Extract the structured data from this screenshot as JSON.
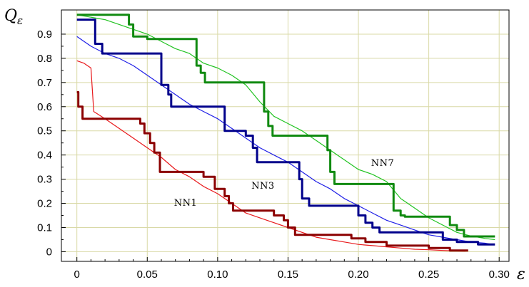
{
  "chart_data": {
    "type": "line",
    "xlabel": "ε",
    "ylabel": "Qε",
    "xlim": [
      -0.011,
      0.307
    ],
    "ylim": [
      -0.04,
      1.0
    ],
    "xticks": [
      0,
      0.05,
      0.1,
      0.15,
      0.2,
      0.25,
      0.3
    ],
    "xtick_labels": [
      "0",
      "0.05",
      "0.10",
      "0.15",
      "0.20",
      "0.25",
      "0.30"
    ],
    "yticks": [
      0,
      0.1,
      0.2,
      0.3,
      0.4,
      0.5,
      0.6,
      0.7,
      0.8,
      0.9
    ],
    "ytick_labels": [
      "0",
      "0.1",
      "0.2",
      "0.3",
      "0.4",
      "0.5",
      "0.6",
      "0.7",
      "0.8",
      "0.9"
    ],
    "grid": true,
    "annotations": [
      {
        "text": "NN1",
        "x": 0.069,
        "y": 0.19
      },
      {
        "text": "NN3",
        "x": 0.124,
        "y": 0.26
      },
      {
        "text": "NN7",
        "x": 0.209,
        "y": 0.355
      }
    ],
    "series": [
      {
        "color": "#e8191c",
        "style": "thin",
        "points": [
          [
            0,
            0.79
          ],
          [
            0.005,
            0.78
          ],
          [
            0.01,
            0.76
          ],
          [
            0.012,
            0.58
          ],
          [
            0.02,
            0.55
          ],
          [
            0.03,
            0.51
          ],
          [
            0.04,
            0.47
          ],
          [
            0.05,
            0.43
          ],
          [
            0.06,
            0.39
          ],
          [
            0.07,
            0.34
          ],
          [
            0.08,
            0.31
          ],
          [
            0.09,
            0.27
          ],
          [
            0.1,
            0.24
          ],
          [
            0.11,
            0.2
          ],
          [
            0.12,
            0.16
          ],
          [
            0.13,
            0.14
          ],
          [
            0.14,
            0.12
          ],
          [
            0.15,
            0.1
          ],
          [
            0.16,
            0.08
          ],
          [
            0.17,
            0.06
          ],
          [
            0.18,
            0.05
          ],
          [
            0.19,
            0.04
          ],
          [
            0.2,
            0.03
          ],
          [
            0.21,
            0.025
          ],
          [
            0.22,
            0.02
          ],
          [
            0.23,
            0.015
          ],
          [
            0.24,
            0.01
          ],
          [
            0.25,
            0.008
          ],
          [
            0.26,
            0.005
          ],
          [
            0.27,
            0.003
          ],
          [
            0.276,
            0.002
          ]
        ]
      },
      {
        "color": "#8b0000",
        "style": "thick",
        "points": [
          [
            0,
            0.66
          ],
          [
            0.001,
            0.66
          ],
          [
            0.001,
            0.6
          ],
          [
            0.004,
            0.6
          ],
          [
            0.004,
            0.55
          ],
          [
            0.045,
            0.55
          ],
          [
            0.045,
            0.53
          ],
          [
            0.048,
            0.53
          ],
          [
            0.048,
            0.49
          ],
          [
            0.052,
            0.49
          ],
          [
            0.052,
            0.45
          ],
          [
            0.055,
            0.45
          ],
          [
            0.055,
            0.41
          ],
          [
            0.059,
            0.41
          ],
          [
            0.059,
            0.33
          ],
          [
            0.09,
            0.33
          ],
          [
            0.09,
            0.31
          ],
          [
            0.098,
            0.31
          ],
          [
            0.098,
            0.26
          ],
          [
            0.105,
            0.26
          ],
          [
            0.105,
            0.23
          ],
          [
            0.108,
            0.23
          ],
          [
            0.108,
            0.2
          ],
          [
            0.111,
            0.2
          ],
          [
            0.111,
            0.17
          ],
          [
            0.14,
            0.17
          ],
          [
            0.14,
            0.15
          ],
          [
            0.147,
            0.15
          ],
          [
            0.147,
            0.13
          ],
          [
            0.15,
            0.13
          ],
          [
            0.15,
            0.1
          ],
          [
            0.155,
            0.1
          ],
          [
            0.155,
            0.07
          ],
          [
            0.195,
            0.07
          ],
          [
            0.195,
            0.055
          ],
          [
            0.205,
            0.055
          ],
          [
            0.205,
            0.04
          ],
          [
            0.22,
            0.04
          ],
          [
            0.22,
            0.025
          ],
          [
            0.25,
            0.025
          ],
          [
            0.25,
            0.015
          ],
          [
            0.265,
            0.015
          ],
          [
            0.265,
            0.005
          ],
          [
            0.278,
            0.005
          ]
        ]
      },
      {
        "color": "#1f1fe6",
        "style": "thin",
        "points": [
          [
            0,
            0.89
          ],
          [
            0.01,
            0.85
          ],
          [
            0.02,
            0.82
          ],
          [
            0.03,
            0.8
          ],
          [
            0.04,
            0.77
          ],
          [
            0.05,
            0.73
          ],
          [
            0.06,
            0.69
          ],
          [
            0.07,
            0.65
          ],
          [
            0.08,
            0.61
          ],
          [
            0.09,
            0.58
          ],
          [
            0.1,
            0.55
          ],
          [
            0.11,
            0.51
          ],
          [
            0.12,
            0.47
          ],
          [
            0.13,
            0.43
          ],
          [
            0.14,
            0.4
          ],
          [
            0.15,
            0.37
          ],
          [
            0.16,
            0.33
          ],
          [
            0.17,
            0.29
          ],
          [
            0.18,
            0.26
          ],
          [
            0.19,
            0.22
          ],
          [
            0.2,
            0.19
          ],
          [
            0.21,
            0.16
          ],
          [
            0.22,
            0.13
          ],
          [
            0.23,
            0.11
          ],
          [
            0.24,
            0.09
          ],
          [
            0.25,
            0.07
          ],
          [
            0.26,
            0.06
          ],
          [
            0.27,
            0.05
          ],
          [
            0.28,
            0.04
          ],
          [
            0.29,
            0.035
          ],
          [
            0.295,
            0.03
          ]
        ]
      },
      {
        "color": "#00008b",
        "style": "thick",
        "points": [
          [
            0,
            0.96
          ],
          [
            0.013,
            0.96
          ],
          [
            0.013,
            0.86
          ],
          [
            0.018,
            0.86
          ],
          [
            0.018,
            0.82
          ],
          [
            0.06,
            0.82
          ],
          [
            0.06,
            0.69
          ],
          [
            0.065,
            0.69
          ],
          [
            0.065,
            0.65
          ],
          [
            0.067,
            0.65
          ],
          [
            0.067,
            0.6
          ],
          [
            0.105,
            0.6
          ],
          [
            0.105,
            0.5
          ],
          [
            0.12,
            0.5
          ],
          [
            0.12,
            0.48
          ],
          [
            0.125,
            0.48
          ],
          [
            0.125,
            0.43
          ],
          [
            0.128,
            0.43
          ],
          [
            0.128,
            0.37
          ],
          [
            0.158,
            0.37
          ],
          [
            0.158,
            0.3
          ],
          [
            0.16,
            0.3
          ],
          [
            0.16,
            0.22
          ],
          [
            0.165,
            0.22
          ],
          [
            0.165,
            0.19
          ],
          [
            0.2,
            0.19
          ],
          [
            0.2,
            0.15
          ],
          [
            0.205,
            0.15
          ],
          [
            0.205,
            0.12
          ],
          [
            0.21,
            0.12
          ],
          [
            0.21,
            0.1
          ],
          [
            0.215,
            0.1
          ],
          [
            0.215,
            0.08
          ],
          [
            0.26,
            0.08
          ],
          [
            0.26,
            0.05
          ],
          [
            0.27,
            0.05
          ],
          [
            0.27,
            0.04
          ],
          [
            0.285,
            0.04
          ],
          [
            0.285,
            0.03
          ],
          [
            0.297,
            0.03
          ]
        ]
      },
      {
        "color": "#22c322",
        "style": "thin",
        "points": [
          [
            0,
            0.98
          ],
          [
            0.02,
            0.96
          ],
          [
            0.04,
            0.92
          ],
          [
            0.05,
            0.9
          ],
          [
            0.06,
            0.87
          ],
          [
            0.07,
            0.84
          ],
          [
            0.08,
            0.82
          ],
          [
            0.09,
            0.78
          ],
          [
            0.1,
            0.76
          ],
          [
            0.11,
            0.73
          ],
          [
            0.12,
            0.69
          ],
          [
            0.13,
            0.62
          ],
          [
            0.14,
            0.56
          ],
          [
            0.15,
            0.53
          ],
          [
            0.16,
            0.5
          ],
          [
            0.17,
            0.46
          ],
          [
            0.18,
            0.42
          ],
          [
            0.19,
            0.38
          ],
          [
            0.2,
            0.34
          ],
          [
            0.21,
            0.32
          ],
          [
            0.22,
            0.29
          ],
          [
            0.23,
            0.22
          ],
          [
            0.24,
            0.18
          ],
          [
            0.25,
            0.14
          ],
          [
            0.26,
            0.11
          ],
          [
            0.27,
            0.08
          ],
          [
            0.28,
            0.065
          ],
          [
            0.29,
            0.055
          ],
          [
            0.297,
            0.05
          ]
        ]
      },
      {
        "color": "#108a10",
        "style": "thick",
        "points": [
          [
            0,
            0.98
          ],
          [
            0.037,
            0.98
          ],
          [
            0.037,
            0.94
          ],
          [
            0.04,
            0.94
          ],
          [
            0.04,
            0.89
          ],
          [
            0.05,
            0.89
          ],
          [
            0.05,
            0.88
          ],
          [
            0.085,
            0.88
          ],
          [
            0.085,
            0.77
          ],
          [
            0.088,
            0.77
          ],
          [
            0.088,
            0.74
          ],
          [
            0.091,
            0.74
          ],
          [
            0.091,
            0.7
          ],
          [
            0.133,
            0.7
          ],
          [
            0.133,
            0.58
          ],
          [
            0.136,
            0.58
          ],
          [
            0.136,
            0.52
          ],
          [
            0.139,
            0.52
          ],
          [
            0.139,
            0.48
          ],
          [
            0.178,
            0.48
          ],
          [
            0.178,
            0.42
          ],
          [
            0.18,
            0.42
          ],
          [
            0.18,
            0.33
          ],
          [
            0.183,
            0.33
          ],
          [
            0.183,
            0.28
          ],
          [
            0.225,
            0.28
          ],
          [
            0.225,
            0.17
          ],
          [
            0.23,
            0.17
          ],
          [
            0.23,
            0.15
          ],
          [
            0.233,
            0.15
          ],
          [
            0.233,
            0.145
          ],
          [
            0.265,
            0.145
          ],
          [
            0.265,
            0.11
          ],
          [
            0.27,
            0.11
          ],
          [
            0.27,
            0.09
          ],
          [
            0.275,
            0.09
          ],
          [
            0.275,
            0.063
          ],
          [
            0.297,
            0.063
          ]
        ]
      }
    ]
  }
}
